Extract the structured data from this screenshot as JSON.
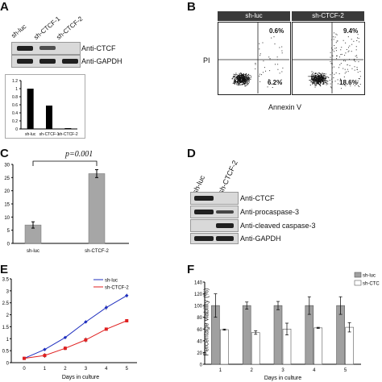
{
  "panelA": {
    "letter": "A",
    "lane_labels": [
      "sh-luc",
      "sh-CTCF-1",
      "sh-CTCF-2"
    ],
    "blot_labels": [
      "Anti-CTCF",
      "Anti-GAPDH"
    ],
    "chart_data": {
      "type": "bar",
      "categories": [
        "sh-luc",
        "sh-CTCF-1",
        "sh-CTCF-2"
      ],
      "values": [
        1.0,
        0.58,
        0.02
      ],
      "ylim": [
        0,
        1.2
      ],
      "yticks": [
        "0",
        "0.2",
        "0.4",
        "0.6",
        "0.8",
        "1",
        "1.2"
      ]
    }
  },
  "panelB": {
    "letter": "B",
    "headers": [
      "sh-luc",
      "sh-CTCF-2"
    ],
    "ylabel": "PI",
    "xlabel": "Annexin V",
    "quadrants": [
      {
        "upper_right": "0.6%",
        "lower_right": "6.2%"
      },
      {
        "upper_right": "9.4%",
        "lower_right": "18.6%"
      }
    ]
  },
  "panelC": {
    "letter": "C",
    "pvalue": "p=0.001",
    "chart_data": {
      "type": "bar",
      "categories": [
        "sh-luc",
        "sh-CTCF-2"
      ],
      "values": [
        7,
        26.5
      ],
      "errors": [
        1.2,
        1.5
      ],
      "ylim": [
        0,
        30
      ],
      "yticks": [
        "0",
        "5",
        "10",
        "15",
        "20",
        "25",
        "30"
      ]
    }
  },
  "panelD": {
    "letter": "D",
    "lane_labels": [
      "sh-luc",
      "sh-CTCF-2"
    ],
    "blot_labels": [
      "Anti-CTCF",
      "Anti-procaspase-3",
      "Anti-cleaved caspase-3",
      "Anti-GAPDH"
    ]
  },
  "panelE": {
    "letter": "E",
    "chart_data": {
      "type": "line",
      "x": [
        0,
        1,
        2,
        3,
        4,
        5
      ],
      "xlabel": "Days in culture",
      "ylim": [
        0,
        3.5
      ],
      "yticks": [
        "0",
        "0.5",
        "1",
        "1.5",
        "2",
        "2.5",
        "3",
        "3.5"
      ],
      "series": [
        {
          "name": "sh-luc",
          "values": [
            0.18,
            0.55,
            1.05,
            1.7,
            2.3,
            2.8
          ],
          "errors": [
            0.03,
            0.05,
            0.05,
            0.06,
            0.1,
            0.08
          ],
          "color": "#1f2fbf"
        },
        {
          "name": "sh-CTCF-2",
          "values": [
            0.18,
            0.3,
            0.6,
            0.95,
            1.4,
            1.75
          ],
          "errors": [
            0.03,
            0.1,
            0.08,
            0.1,
            0.05,
            0.06
          ],
          "color": "#e02020"
        }
      ]
    }
  },
  "panelF": {
    "letter": "F",
    "chart_data": {
      "type": "bar",
      "categories": [
        "1",
        "2",
        "3",
        "4",
        "5"
      ],
      "xlabel": "Days in culture",
      "ylabel": "Percentage viability (%)",
      "ylim": [
        0,
        140
      ],
      "yticks": [
        "0",
        "20",
        "40",
        "60",
        "80",
        "100",
        "120",
        "140"
      ],
      "series": [
        {
          "name": "sh-luc",
          "values": [
            100,
            100,
            100,
            100,
            100
          ],
          "errors": [
            20,
            6,
            7,
            15,
            15
          ],
          "color": "#a0a0a0"
        },
        {
          "name": "sh-CTC",
          "values": [
            59,
            54,
            60,
            62,
            63
          ],
          "errors": [
            1,
            3,
            10,
            1,
            8
          ],
          "color": "#ffffff"
        }
      ]
    }
  }
}
